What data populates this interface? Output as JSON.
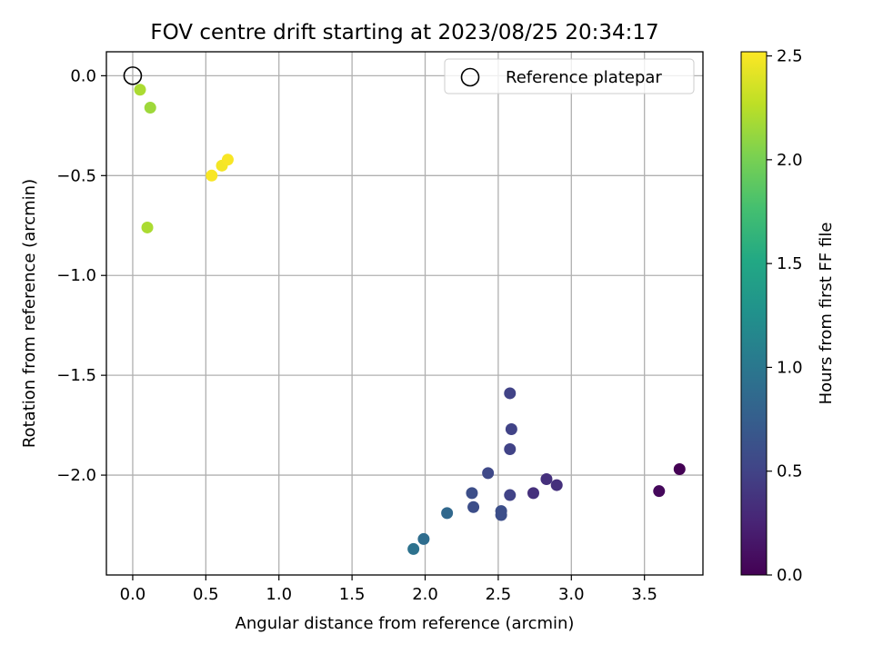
{
  "chart_data": {
    "type": "scatter",
    "title": "FOV centre drift starting at 2023/08/25 20:34:17",
    "xlabel": "Angular distance from reference (arcmin)",
    "ylabel": "Rotation from reference (arcmin)",
    "xlim": [
      -0.18,
      3.9
    ],
    "ylim": [
      -2.5,
      0.12
    ],
    "xticks": [
      0.0,
      0.5,
      1.0,
      1.5,
      2.0,
      2.5,
      3.0,
      3.5
    ],
    "xtick_labels": [
      "0.0",
      "0.5",
      "1.0",
      "1.5",
      "2.0",
      "2.5",
      "3.0",
      "3.5"
    ],
    "yticks": [
      0.0,
      -0.5,
      -1.0,
      -1.5,
      -2.0
    ],
    "ytick_labels": [
      "0.0",
      "−0.5",
      "−1.0",
      "−1.5",
      "−2.0"
    ],
    "grid": true,
    "legend": {
      "position": "top-right",
      "entries": [
        "Reference platepar"
      ]
    },
    "reference_point": {
      "name": "Reference platepar",
      "x": 0.0,
      "y": 0.0,
      "marker": "open-circle"
    },
    "colorbar": {
      "label": "Hours from first FF file",
      "colormap": "viridis",
      "range": [
        0.0,
        2.52
      ],
      "ticks": [
        0.0,
        0.5,
        1.0,
        1.5,
        2.0,
        2.5
      ],
      "tick_labels": [
        "0.0",
        "0.5",
        "1.0",
        "1.5",
        "2.0",
        "2.5"
      ]
    },
    "points": [
      {
        "x": 0.05,
        "y": -0.07,
        "c": 2.2
      },
      {
        "x": 0.12,
        "y": -0.16,
        "c": 2.15
      },
      {
        "x": 0.1,
        "y": -0.76,
        "c": 2.2
      },
      {
        "x": 0.54,
        "y": -0.5,
        "c": 2.5
      },
      {
        "x": 0.61,
        "y": -0.45,
        "c": 2.48
      },
      {
        "x": 0.65,
        "y": -0.42,
        "c": 2.5
      },
      {
        "x": 2.58,
        "y": -1.59,
        "c": 0.5
      },
      {
        "x": 2.59,
        "y": -1.77,
        "c": 0.5
      },
      {
        "x": 2.58,
        "y": -1.87,
        "c": 0.5
      },
      {
        "x": 2.43,
        "y": -1.99,
        "c": 0.55
      },
      {
        "x": 2.32,
        "y": -2.09,
        "c": 0.6
      },
      {
        "x": 2.33,
        "y": -2.16,
        "c": 0.6
      },
      {
        "x": 2.58,
        "y": -2.1,
        "c": 0.5
      },
      {
        "x": 2.74,
        "y": -2.09,
        "c": 0.35
      },
      {
        "x": 2.83,
        "y": -2.02,
        "c": 0.35
      },
      {
        "x": 2.9,
        "y": -2.05,
        "c": 0.35
      },
      {
        "x": 2.52,
        "y": -2.18,
        "c": 0.6
      },
      {
        "x": 2.52,
        "y": -2.2,
        "c": 0.6
      },
      {
        "x": 2.15,
        "y": -2.19,
        "c": 0.85
      },
      {
        "x": 1.99,
        "y": -2.32,
        "c": 0.9
      },
      {
        "x": 1.92,
        "y": -2.37,
        "c": 0.95
      },
      {
        "x": 3.6,
        "y": -2.08,
        "c": 0.05
      },
      {
        "x": 3.74,
        "y": -1.97,
        "c": 0.0
      }
    ]
  }
}
